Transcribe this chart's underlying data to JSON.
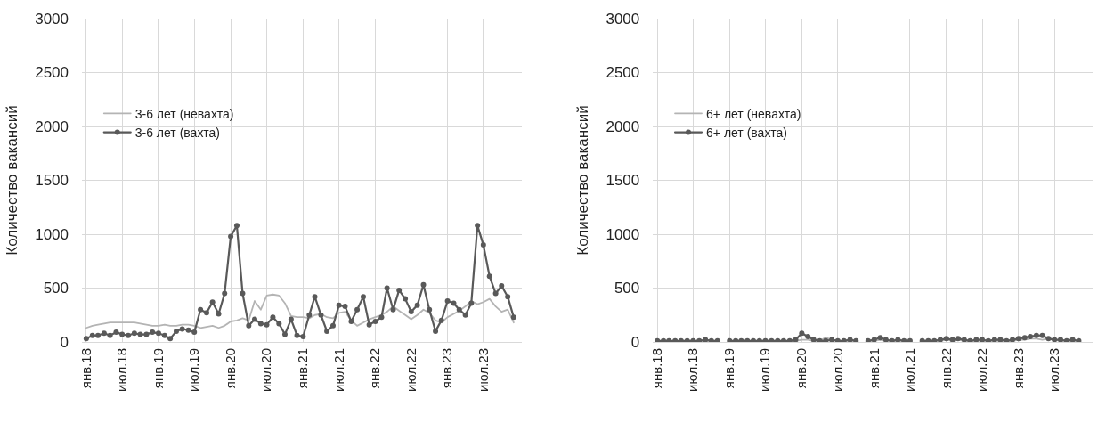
{
  "chart_data": [
    {
      "type": "line",
      "ylabel": "Количество вакансий",
      "xlim": [
        "2017-12-10",
        "2024-01-10"
      ],
      "ylim": [
        0,
        3000
      ],
      "yticks": [
        0,
        500,
        1000,
        1500,
        2000,
        2500,
        3000
      ],
      "xticks": [
        {
          "value": "2018-01",
          "label": "янв.18"
        },
        {
          "value": "2018-07",
          "label": "июл.18"
        },
        {
          "value": "2019-01",
          "label": "янв.19"
        },
        {
          "value": "2019-07",
          "label": "июл.19"
        },
        {
          "value": "2020-01",
          "label": "янв.20"
        },
        {
          "value": "2020-07",
          "label": "июл.20"
        },
        {
          "value": "2021-01",
          "label": "янв.21"
        },
        {
          "value": "2021-07",
          "label": "июл.21"
        },
        {
          "value": "2022-01",
          "label": "янв.22"
        },
        {
          "value": "2022-07",
          "label": "июл.22"
        },
        {
          "value": "2023-01",
          "label": "янв.23"
        },
        {
          "value": "2023-07",
          "label": "июл.23"
        }
      ],
      "x": [
        "2018-01",
        "2018-02",
        "2018-03",
        "2018-04",
        "2018-05",
        "2018-06",
        "2018-07",
        "2018-08",
        "2018-09",
        "2018-10",
        "2018-11",
        "2018-12",
        "2019-01",
        "2019-02",
        "2019-03",
        "2019-04",
        "2019-05",
        "2019-06",
        "2019-07",
        "2019-08",
        "2019-09",
        "2019-10",
        "2019-11",
        "2019-12",
        "2020-01",
        "2020-02",
        "2020-03",
        "2020-04",
        "2020-05",
        "2020-06",
        "2020-07",
        "2020-08",
        "2020-09",
        "2020-10",
        "2020-11",
        "2020-12",
        "2021-01",
        "2021-02",
        "2021-03",
        "2021-04",
        "2021-05",
        "2021-06",
        "2021-07",
        "2021-08",
        "2021-09",
        "2021-10",
        "2021-11",
        "2021-12",
        "2022-01",
        "2022-02",
        "2022-03",
        "2022-04",
        "2022-05",
        "2022-06",
        "2022-07",
        "2022-08",
        "2022-09",
        "2022-10",
        "2022-11",
        "2022-12",
        "2023-01",
        "2023-02",
        "2023-03",
        "2023-04",
        "2023-05",
        "2023-06",
        "2023-07",
        "2023-08",
        "2023-09",
        "2023-10",
        "2023-11",
        "2023-12"
      ],
      "grid": true,
      "legend": "top left",
      "series": [
        {
          "name": "3-6 лет (невахта)",
          "color": "#b4b4b4",
          "marker": "none",
          "values": [
            130,
            150,
            160,
            170,
            180,
            180,
            180,
            180,
            180,
            170,
            160,
            150,
            150,
            160,
            150,
            150,
            160,
            160,
            150,
            130,
            140,
            150,
            130,
            150,
            190,
            200,
            220,
            200,
            380,
            300,
            430,
            440,
            430,
            360,
            240,
            230,
            230,
            220,
            250,
            260,
            230,
            220,
            270,
            280,
            200,
            150,
            180,
            210,
            230,
            250,
            280,
            330,
            290,
            250,
            210,
            250,
            300,
            270,
            200,
            180,
            230,
            260,
            290,
            330,
            380,
            350,
            370,
            400,
            330,
            280,
            300,
            180
          ]
        },
        {
          "name": "3-6 лет (вахта)",
          "color": "#595959",
          "marker": "circle",
          "values": [
            30,
            60,
            60,
            80,
            60,
            90,
            70,
            60,
            80,
            70,
            70,
            90,
            80,
            60,
            30,
            100,
            120,
            110,
            90,
            300,
            270,
            370,
            260,
            450,
            980,
            1080,
            450,
            150,
            210,
            170,
            160,
            230,
            170,
            70,
            210,
            60,
            50,
            250,
            420,
            250,
            100,
            150,
            340,
            330,
            190,
            300,
            420,
            160,
            190,
            230,
            500,
            300,
            480,
            400,
            280,
            340,
            530,
            300,
            100,
            200,
            380,
            360,
            300,
            250,
            360,
            1080,
            900,
            610,
            450,
            520,
            420,
            230
          ]
        }
      ]
    },
    {
      "type": "line",
      "ylabel": "Количество вакансий",
      "xlim": [
        "2017-12-10",
        "2024-01-10"
      ],
      "ylim": [
        0,
        3000
      ],
      "yticks": [
        0,
        500,
        1000,
        1500,
        2000,
        2500,
        3000
      ],
      "xticks": [
        {
          "value": "2018-01",
          "label": "янв.18"
        },
        {
          "value": "2018-07",
          "label": "июл.18"
        },
        {
          "value": "2019-01",
          "label": "янв.19"
        },
        {
          "value": "2019-07",
          "label": "июл.19"
        },
        {
          "value": "2020-01",
          "label": "янв.20"
        },
        {
          "value": "2020-07",
          "label": "июл.20"
        },
        {
          "value": "2021-01",
          "label": "янв.21"
        },
        {
          "value": "2021-07",
          "label": "июл.21"
        },
        {
          "value": "2022-01",
          "label": "янв.22"
        },
        {
          "value": "2022-07",
          "label": "июл.22"
        },
        {
          "value": "2023-01",
          "label": "янв.23"
        },
        {
          "value": "2023-07",
          "label": "июл.23"
        }
      ],
      "x": [
        "2018-01",
        "2018-02",
        "2018-03",
        "2018-04",
        "2018-05",
        "2018-06",
        "2018-07",
        "2018-08",
        "2018-09",
        "2018-10",
        "2018-11",
        "2018-12",
        "2019-01",
        "2019-02",
        "2019-03",
        "2019-04",
        "2019-05",
        "2019-06",
        "2019-07",
        "2019-08",
        "2019-09",
        "2019-10",
        "2019-11",
        "2019-12",
        "2020-01",
        "2020-02",
        "2020-03",
        "2020-04",
        "2020-05",
        "2020-06",
        "2020-07",
        "2020-08",
        "2020-09",
        "2020-10",
        "2020-11",
        "2020-12",
        "2021-01",
        "2021-02",
        "2021-03",
        "2021-04",
        "2021-05",
        "2021-06",
        "2021-07",
        "2021-08",
        "2021-09",
        "2021-10",
        "2021-11",
        "2021-12",
        "2022-01",
        "2022-02",
        "2022-03",
        "2022-04",
        "2022-05",
        "2022-06",
        "2022-07",
        "2022-08",
        "2022-09",
        "2022-10",
        "2022-11",
        "2022-12",
        "2023-01",
        "2023-02",
        "2023-03",
        "2023-04",
        "2023-05",
        "2023-06",
        "2023-07",
        "2023-08",
        "2023-09",
        "2023-10",
        "2023-11"
      ],
      "grid": true,
      "legend": "top left",
      "series": [
        {
          "name": "6+ лет (невахта)",
          "color": "#b4b4b4",
          "marker": "none",
          "values": [
            10,
            10,
            10,
            10,
            10,
            10,
            10,
            10,
            10,
            10,
            10,
            null,
            10,
            10,
            10,
            10,
            10,
            10,
            10,
            10,
            10,
            10,
            10,
            10,
            20,
            20,
            10,
            10,
            40,
            20,
            10,
            10,
            10,
            10,
            null,
            10,
            10,
            20,
            10,
            10,
            10,
            10,
            10,
            null,
            10,
            10,
            10,
            10,
            20,
            10,
            20,
            10,
            10,
            10,
            10,
            10,
            10,
            10,
            10,
            10,
            20,
            20,
            30,
            30,
            20,
            30,
            20,
            10,
            10,
            10,
            10
          ]
        },
        {
          "name": "6+ лет (вахта)",
          "color": "#595959",
          "marker": "circle",
          "values": [
            10,
            10,
            10,
            10,
            10,
            10,
            10,
            10,
            20,
            10,
            10,
            null,
            10,
            10,
            10,
            10,
            10,
            10,
            10,
            10,
            10,
            10,
            10,
            20,
            80,
            50,
            20,
            10,
            10,
            20,
            10,
            10,
            20,
            10,
            null,
            10,
            20,
            40,
            20,
            10,
            20,
            10,
            10,
            null,
            10,
            10,
            10,
            20,
            30,
            20,
            30,
            20,
            10,
            20,
            20,
            10,
            20,
            20,
            10,
            20,
            30,
            40,
            50,
            60,
            60,
            30,
            20,
            20,
            10,
            20,
            10
          ]
        }
      ]
    }
  ]
}
